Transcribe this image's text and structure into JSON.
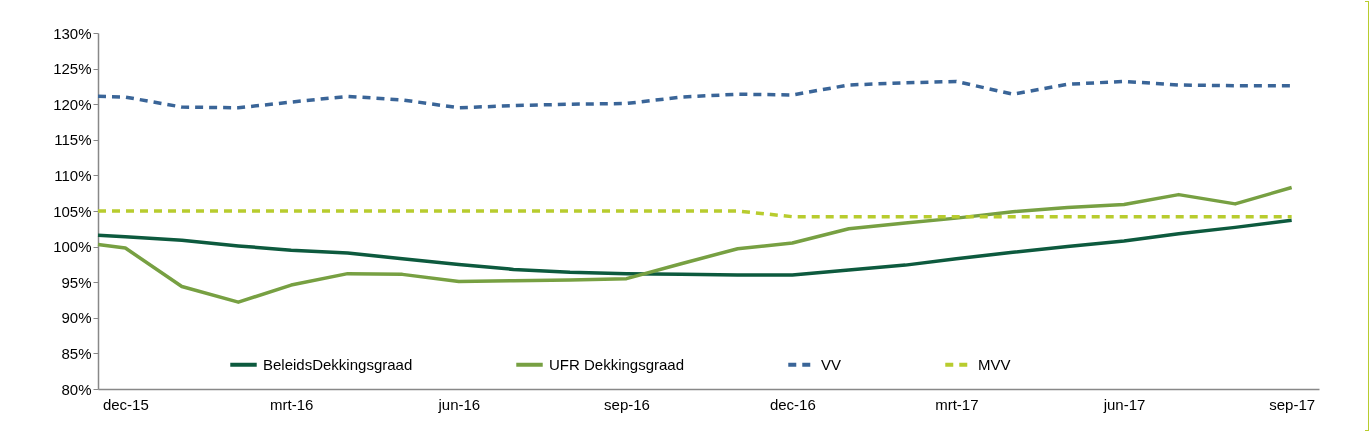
{
  "chart_data": {
    "type": "line",
    "x": [
      "2015-11-16",
      "2015-12-01",
      "2016-01-01",
      "2016-02-01",
      "2016-03-01",
      "2016-04-01",
      "2016-05-01",
      "2016-06-01",
      "2016-07-01",
      "2016-08-01",
      "2016-09-01",
      "2016-10-01",
      "2016-11-01",
      "2016-12-01",
      "2017-01-01",
      "2017-02-01",
      "2017-03-01",
      "2017-04-01",
      "2017-05-01",
      "2017-06-01",
      "2017-07-01",
      "2017-08-01",
      "2017-09-01"
    ],
    "series": [
      {
        "name": "BeleidsDekkingsgraad",
        "color": "#0d5a3e",
        "line_style": "solid",
        "values": [
          101.6,
          101.4,
          100.9,
          100.1,
          99.5,
          99.1,
          98.3,
          97.5,
          96.8,
          96.4,
          96.2,
          96.1,
          96.0,
          96.0,
          96.7,
          97.4,
          98.3,
          99.2,
          100.0,
          100.8,
          101.8,
          102.7,
          103.7
        ]
      },
      {
        "name": "UFR Dekkingsgraad",
        "color": "#77a042",
        "line_style": "solid",
        "values": [
          100.3,
          99.8,
          94.4,
          92.2,
          94.6,
          96.2,
          96.1,
          95.1,
          95.2,
          95.3,
          95.5,
          97.6,
          99.7,
          100.5,
          102.5,
          103.3,
          104.0,
          104.9,
          105.5,
          105.9,
          107.3,
          106.0,
          108.3
        ]
      },
      {
        "name": "VV",
        "color": "#3a6598",
        "line_style": "dashed",
        "values": [
          121.1,
          121.0,
          119.6,
          119.5,
          120.3,
          121.1,
          120.6,
          119.5,
          119.8,
          120.0,
          120.1,
          121.0,
          121.4,
          121.3,
          122.7,
          123.0,
          123.2,
          121.4,
          122.8,
          123.2,
          122.7,
          122.6,
          122.6
        ]
      },
      {
        "name": "MVV",
        "color": "#b8cc2e",
        "line_style": "dashed",
        "values": [
          105.0,
          105.0,
          105.0,
          105.0,
          105.0,
          105.0,
          105.0,
          105.0,
          105.0,
          105.0,
          105.0,
          105.0,
          105.0,
          104.2,
          104.2,
          104.2,
          104.2,
          104.2,
          104.2,
          104.2,
          104.2,
          104.2,
          104.2
        ]
      }
    ],
    "xlim": [
      "2015-11-16",
      "2017-09-16"
    ],
    "xticks": [
      {
        "value": "2015-12-01",
        "label": "dec-15"
      },
      {
        "value": "2016-03-01",
        "label": "mrt-16"
      },
      {
        "value": "2016-06-01",
        "label": "jun-16"
      },
      {
        "value": "2016-09-01",
        "label": "sep-16"
      },
      {
        "value": "2016-12-01",
        "label": "dec-16"
      },
      {
        "value": "2017-03-01",
        "label": "mrt-17"
      },
      {
        "value": "2017-06-01",
        "label": "jun-17"
      },
      {
        "value": "2017-09-01",
        "label": "sep-17"
      }
    ],
    "ylim": [
      80,
      130
    ],
    "yticks": [
      {
        "value": 80,
        "label": "80%"
      },
      {
        "value": 85,
        "label": "85%"
      },
      {
        "value": 90,
        "label": "90%"
      },
      {
        "value": 95,
        "label": "95%"
      },
      {
        "value": 100,
        "label": "100%"
      },
      {
        "value": 105,
        "label": "105%"
      },
      {
        "value": 110,
        "label": "110%"
      },
      {
        "value": 115,
        "label": "115%"
      },
      {
        "value": 120,
        "label": "120%"
      },
      {
        "value": 125,
        "label": "125%"
      },
      {
        "value": 130,
        "label": "130%"
      }
    ],
    "grid": false,
    "legend": "bottom"
  }
}
